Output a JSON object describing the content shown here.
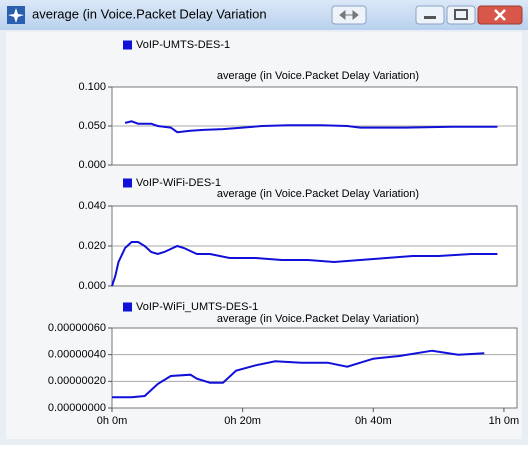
{
  "window": {
    "title": "average (in Voice.Packet Delay Variation"
  },
  "chart_data": [
    {
      "type": "line",
      "legend": "VoIP-UMTS-DES-1",
      "subtitle": "average (in Voice.Packet Delay Variation)",
      "x": [
        2,
        3,
        4,
        6,
        7,
        9,
        10,
        12,
        14,
        17,
        20,
        23,
        27,
        32,
        36,
        38,
        45,
        52,
        59
      ],
      "series": [
        {
          "name": "VoIP-UMTS-DES-1",
          "color": "#1010d8",
          "values": [
            0.054,
            0.056,
            0.053,
            0.053,
            0.05,
            0.048,
            0.042,
            0.044,
            0.045,
            0.046,
            0.048,
            0.05,
            0.051,
            0.051,
            0.05,
            0.048,
            0.048,
            0.049,
            0.049
          ]
        }
      ],
      "xlim": [
        0,
        62
      ],
      "ylim": [
        0,
        0.1
      ],
      "yticks": [
        {
          "value": 0,
          "label": "0.000"
        },
        {
          "value": 0.05,
          "label": "0.050"
        },
        {
          "value": 0.1,
          "label": "0.100"
        }
      ],
      "grid": true
    },
    {
      "type": "line",
      "legend": "VoIP-WiFi-DES-1",
      "subtitle": "average (in Voice.Packet Delay Variation)",
      "x": [
        0,
        0.5,
        1,
        2,
        3,
        4,
        5,
        6,
        7,
        8,
        10,
        11,
        13,
        15,
        18,
        22,
        26,
        30,
        34,
        38,
        42,
        46,
        50,
        55,
        59
      ],
      "series": [
        {
          "name": "VoIP-WiFi-DES-1",
          "color": "#1010d8",
          "values": [
            0,
            0.005,
            0.012,
            0.019,
            0.022,
            0.022,
            0.02,
            0.017,
            0.016,
            0.017,
            0.02,
            0.019,
            0.016,
            0.016,
            0.014,
            0.014,
            0.013,
            0.013,
            0.012,
            0.013,
            0.014,
            0.015,
            0.015,
            0.016,
            0.016
          ]
        }
      ],
      "xlim": [
        0,
        62
      ],
      "ylim": [
        0,
        0.04
      ],
      "yticks": [
        {
          "value": 0,
          "label": "0.000"
        },
        {
          "value": 0.02,
          "label": "0.020"
        },
        {
          "value": 0.04,
          "label": "0.040"
        }
      ],
      "grid": true
    },
    {
      "type": "line",
      "legend": "VoIP-WiFi_UMTS-DES-1",
      "subtitle": "average (in Voice.Packet Delay Variation)",
      "x": [
        0,
        3,
        5,
        7,
        9,
        12,
        13,
        15,
        17,
        19,
        22,
        25,
        29,
        33,
        36,
        40,
        44,
        49,
        53,
        57
      ],
      "series": [
        {
          "name": "VoIP-WiFi_UMTS-DES-1",
          "color": "#1010d8",
          "values": [
            8e-08,
            8e-08,
            9e-08,
            1.8e-07,
            2.4e-07,
            2.5e-07,
            2.2e-07,
            1.9e-07,
            1.9e-07,
            2.8e-07,
            3.2e-07,
            3.5e-07,
            3.4e-07,
            3.4e-07,
            3.1e-07,
            3.7e-07,
            3.9e-07,
            4.3e-07,
            4e-07,
            4.1e-07
          ]
        }
      ],
      "xlim": [
        0,
        62
      ],
      "ylim": [
        0,
        6e-07
      ],
      "yticks": [
        {
          "value": 0,
          "label": "0.00000000"
        },
        {
          "value": 2e-07,
          "label": "0.00000020"
        },
        {
          "value": 4e-07,
          "label": "0.00000040"
        },
        {
          "value": 6e-07,
          "label": "0.00000060"
        }
      ],
      "xticks": [
        {
          "value": 0,
          "label": "0h 0m"
        },
        {
          "value": 20,
          "label": "0h 20m"
        },
        {
          "value": 40,
          "label": "0h 40m"
        },
        {
          "value": 60,
          "label": "1h 0m"
        }
      ],
      "grid": true
    }
  ]
}
